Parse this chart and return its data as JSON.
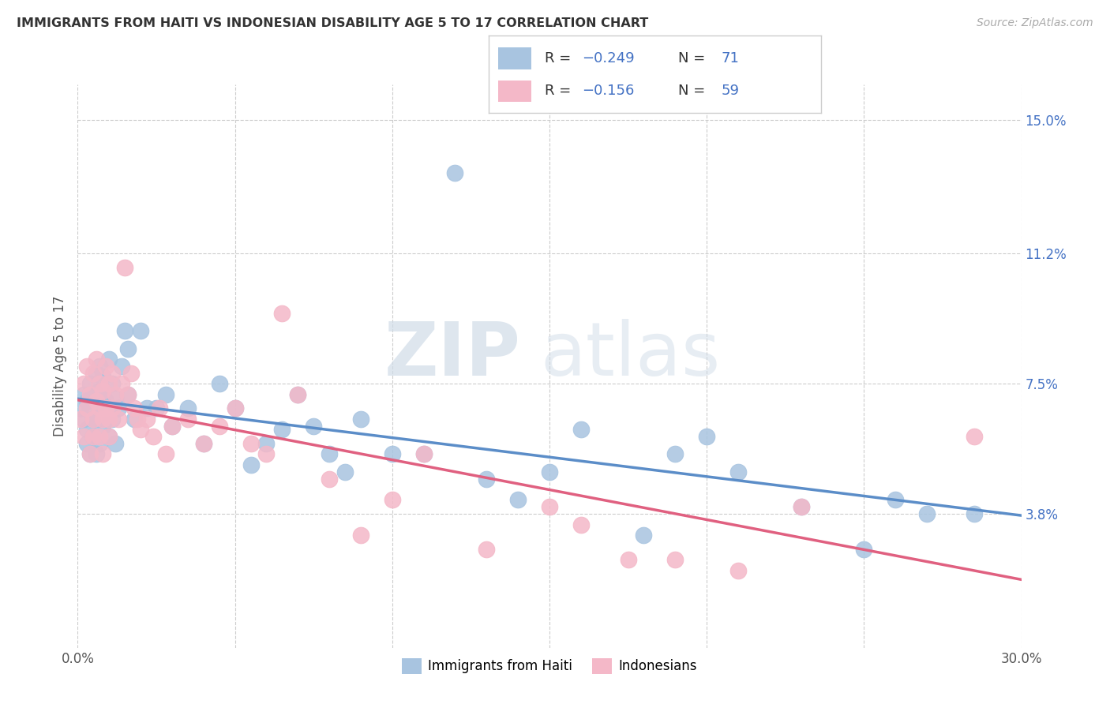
{
  "title": "IMMIGRANTS FROM HAITI VS INDONESIAN DISABILITY AGE 5 TO 17 CORRELATION CHART",
  "source": "Source: ZipAtlas.com",
  "ylabel": "Disability Age 5 to 17",
  "xlim": [
    0.0,
    0.3
  ],
  "ylim": [
    0.0,
    0.16
  ],
  "xticks": [
    0.0,
    0.05,
    0.1,
    0.15,
    0.2,
    0.25,
    0.3
  ],
  "xtick_labels": [
    "0.0%",
    "",
    "",
    "",
    "",
    "",
    "30.0%"
  ],
  "ytick_labels_right": [
    "15.0%",
    "11.2%",
    "7.5%",
    "3.8%"
  ],
  "ytick_positions_right": [
    0.15,
    0.112,
    0.075,
    0.038
  ],
  "haiti_color": "#a8c4e0",
  "indonesian_color": "#f4b8c8",
  "haiti_line_color": "#5b8dc8",
  "indonesian_line_color": "#e06080",
  "watermark_zip": "ZIP",
  "watermark_atlas": "atlas",
  "background_color": "#ffffff",
  "grid_color": "#cccccc",
  "haiti_x": [
    0.001,
    0.002,
    0.002,
    0.003,
    0.003,
    0.003,
    0.004,
    0.004,
    0.004,
    0.005,
    0.005,
    0.005,
    0.006,
    0.006,
    0.006,
    0.007,
    0.007,
    0.007,
    0.007,
    0.008,
    0.008,
    0.008,
    0.008,
    0.009,
    0.009,
    0.01,
    0.01,
    0.01,
    0.011,
    0.011,
    0.012,
    0.012,
    0.013,
    0.014,
    0.015,
    0.016,
    0.016,
    0.018,
    0.02,
    0.022,
    0.025,
    0.028,
    0.03,
    0.035,
    0.04,
    0.045,
    0.05,
    0.055,
    0.06,
    0.065,
    0.07,
    0.075,
    0.08,
    0.085,
    0.09,
    0.1,
    0.11,
    0.12,
    0.13,
    0.14,
    0.15,
    0.16,
    0.18,
    0.19,
    0.2,
    0.21,
    0.23,
    0.25,
    0.26,
    0.27,
    0.285
  ],
  "haiti_y": [
    0.068,
    0.072,
    0.065,
    0.07,
    0.062,
    0.058,
    0.068,
    0.055,
    0.075,
    0.065,
    0.072,
    0.06,
    0.07,
    0.078,
    0.055,
    0.065,
    0.08,
    0.073,
    0.058,
    0.072,
    0.068,
    0.063,
    0.077,
    0.065,
    0.07,
    0.082,
    0.068,
    0.06,
    0.075,
    0.065,
    0.071,
    0.058,
    0.068,
    0.08,
    0.09,
    0.085,
    0.072,
    0.065,
    0.09,
    0.068,
    0.068,
    0.072,
    0.063,
    0.068,
    0.058,
    0.075,
    0.068,
    0.052,
    0.058,
    0.062,
    0.072,
    0.063,
    0.055,
    0.05,
    0.065,
    0.055,
    0.055,
    0.135,
    0.048,
    0.042,
    0.05,
    0.062,
    0.032,
    0.055,
    0.06,
    0.05,
    0.04,
    0.028,
    0.042,
    0.038,
    0.038
  ],
  "indonesian_x": [
    0.001,
    0.002,
    0.002,
    0.003,
    0.003,
    0.004,
    0.004,
    0.005,
    0.005,
    0.005,
    0.006,
    0.006,
    0.007,
    0.007,
    0.007,
    0.008,
    0.008,
    0.008,
    0.009,
    0.009,
    0.01,
    0.01,
    0.01,
    0.011,
    0.011,
    0.012,
    0.013,
    0.014,
    0.015,
    0.016,
    0.017,
    0.018,
    0.019,
    0.02,
    0.022,
    0.024,
    0.026,
    0.028,
    0.03,
    0.035,
    0.04,
    0.045,
    0.05,
    0.055,
    0.06,
    0.065,
    0.07,
    0.08,
    0.09,
    0.1,
    0.11,
    0.13,
    0.15,
    0.16,
    0.175,
    0.19,
    0.21,
    0.23,
    0.285
  ],
  "indonesian_y": [
    0.065,
    0.075,
    0.06,
    0.08,
    0.068,
    0.072,
    0.055,
    0.078,
    0.065,
    0.06,
    0.082,
    0.07,
    0.075,
    0.068,
    0.06,
    0.073,
    0.065,
    0.055,
    0.08,
    0.068,
    0.075,
    0.065,
    0.06,
    0.078,
    0.068,
    0.072,
    0.065,
    0.075,
    0.108,
    0.072,
    0.078,
    0.068,
    0.065,
    0.062,
    0.065,
    0.06,
    0.068,
    0.055,
    0.063,
    0.065,
    0.058,
    0.063,
    0.068,
    0.058,
    0.055,
    0.095,
    0.072,
    0.048,
    0.032,
    0.042,
    0.055,
    0.028,
    0.04,
    0.035,
    0.025,
    0.025,
    0.022,
    0.04,
    0.06
  ]
}
